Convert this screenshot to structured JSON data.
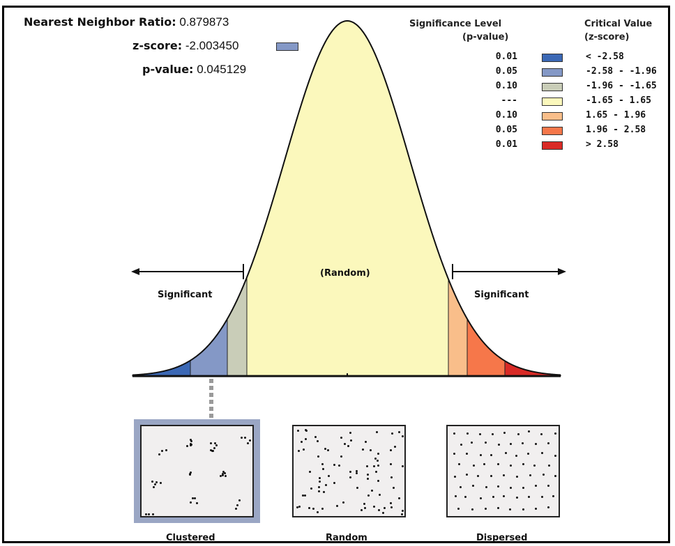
{
  "stats": {
    "ratio_label": "Nearest Neighbor Ratio:",
    "ratio_value": "0.879873",
    "z_label": "z-score:",
    "z_value": "-2.003450",
    "p_label": "p-value:",
    "p_value": "0.045129"
  },
  "legend": {
    "sig_title": "Significance Level",
    "sig_sub": "(p-value)",
    "crit_title": "Critical Value",
    "crit_sub": "(z-score)",
    "rows": [
      {
        "p": "0.01",
        "z": "< -2.58",
        "color": "#3b68b5"
      },
      {
        "p": "0.05",
        "z": "-2.58 - -1.96",
        "color": "#8498c6"
      },
      {
        "p": "0.10",
        "z": "-1.96 - -1.65",
        "color": "#c9cdb8"
      },
      {
        "p": "---",
        "z": "-1.65 - 1.65",
        "color": "#fbf8bc"
      },
      {
        "p": "0.10",
        "z": "1.65 - 1.96",
        "color": "#f9be8a"
      },
      {
        "p": "0.05",
        "z": "1.96 - 2.58",
        "color": "#f6774a"
      },
      {
        "p": "0.01",
        "z": "> 2.58",
        "color": "#d92a26"
      }
    ]
  },
  "curve": {
    "left_label": "Significant",
    "center_label": "(Random)",
    "right_label": "Significant",
    "highlight_color": "#8498c6"
  },
  "patterns": {
    "clustered": "Clustered",
    "random": "Random",
    "dispersed": "Dispersed"
  }
}
